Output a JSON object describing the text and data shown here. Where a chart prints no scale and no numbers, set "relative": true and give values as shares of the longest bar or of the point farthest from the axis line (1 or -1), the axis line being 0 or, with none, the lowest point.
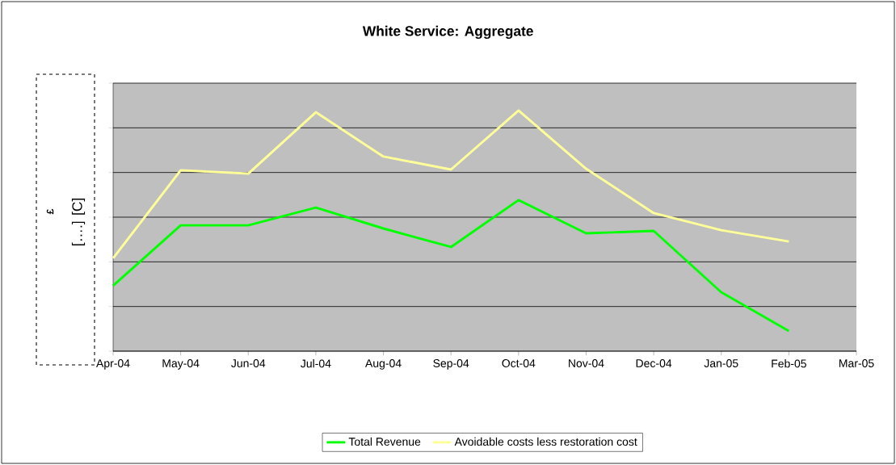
{
  "chart_data": {
    "type": "line",
    "title": "White Service: Aggregate",
    "annotations": [
      "£",
      "[….] [C]"
    ],
    "categories": [
      "Apr-04",
      "May-04",
      "Jun-04",
      "Jul-04",
      "Aug-04",
      "Sep-04",
      "Oct-04",
      "Nov-04",
      "Dec-04",
      "Jan-05",
      "Feb-05",
      "Mar-05"
    ],
    "relative": true,
    "grid": "y",
    "legend": "bottom",
    "series": [
      {
        "name": "Total Revenue",
        "color": "#00ff00",
        "values": [
          0.272,
          0.523,
          0.523,
          0.597,
          0.51,
          0.433,
          0.628,
          0.49,
          0.5,
          0.245,
          0.084,
          null
        ]
      },
      {
        "name": "Avoidable costs less restoration cost",
        "color": "#ffff99",
        "values": [
          0.386,
          0.752,
          0.738,
          0.993,
          0.809,
          0.755,
          1.0,
          0.758,
          0.574,
          0.503,
          0.456,
          null
        ]
      }
    ]
  }
}
